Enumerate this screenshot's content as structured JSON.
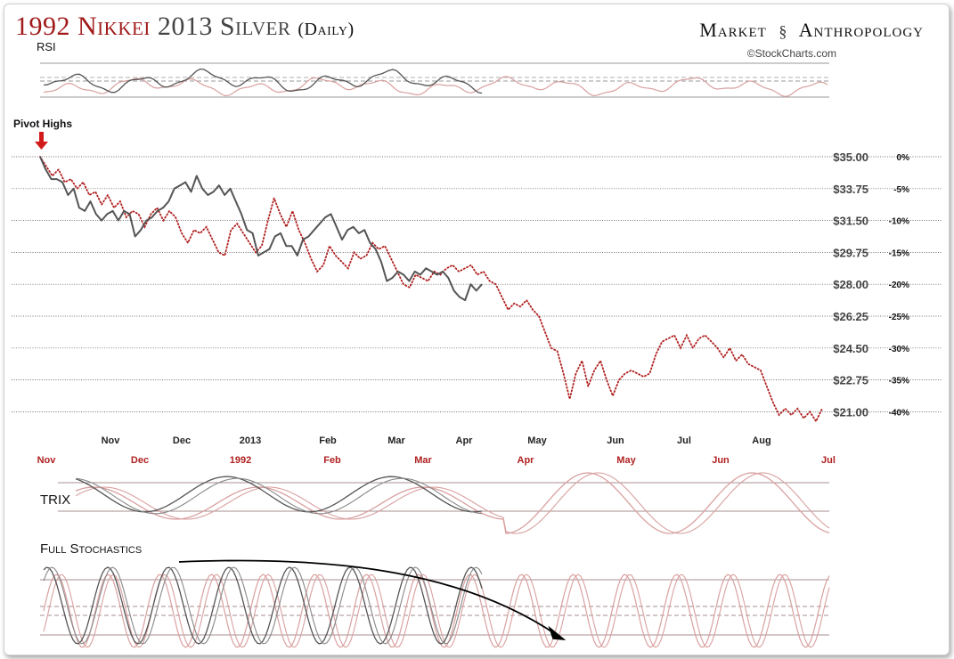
{
  "header": {
    "title_red": "1992 Nikkei",
    "title_gray": "2013 Silver",
    "title_paren": "(Daily)",
    "brand_left": "Market",
    "brand_right": "Anthropology",
    "brand_icon": "dna-helix-icon",
    "credit": "©StockCharts.com"
  },
  "labels": {
    "rsi": "RSI",
    "pivot": "Pivot Highs",
    "trix": "TRIX",
    "stoch": "Full Stochastics"
  },
  "colors": {
    "nikkei": "#b02020",
    "silver": "#555555",
    "nikkei_light": "#d9a0a0",
    "grid": "#9a9a9a",
    "arrow": "#d11a1a"
  },
  "chart_data": {
    "type": "line",
    "y_axis": {
      "price_ticks": [
        "$35.00",
        "$33.75",
        "$31.50",
        "$29.75",
        "$28.00",
        "$26.25",
        "$24.50",
        "$22.75",
        "$21.00"
      ],
      "pct_ticks": [
        "0%",
        "-5%",
        "-10%",
        "-15%",
        "-20%",
        "-25%",
        "-30%",
        "-35%",
        "-40%"
      ],
      "range_pct": [
        -40,
        0
      ]
    },
    "x_axis_silver": [
      "Nov",
      "Dec",
      "2013",
      "Feb",
      "Mar",
      "Apr",
      "May",
      "Jun",
      "Jul",
      "Aug"
    ],
    "x_axis_nikkei": [
      "Nov",
      "Dec",
      "1992",
      "Feb",
      "Mar",
      "Apr",
      "May",
      "Jun",
      "Jul"
    ],
    "grid": true,
    "series": [
      {
        "name": "1992 Nikkei",
        "style": "dotted",
        "pct": [
          0,
          -1.5,
          -3,
          -2,
          -4,
          -3.5,
          -5,
          -4,
          -6,
          -5.5,
          -7.5,
          -6,
          -8,
          -7,
          -9.5,
          -8.5,
          -9,
          -11,
          -9,
          -8,
          -10,
          -8.5,
          -9.5,
          -12,
          -13.5,
          -11.5,
          -12,
          -11,
          -13,
          -15,
          -15.5,
          -11.5,
          -10.5,
          -12,
          -13.5,
          -15,
          -14,
          -10,
          -6.5,
          -9,
          -11,
          -8.5,
          -11.5,
          -13.5,
          -16,
          -18,
          -17,
          -14,
          -15.5,
          -16.5,
          -17.5,
          -15,
          -16,
          -15.5,
          -13.5,
          -14.5,
          -14,
          -16,
          -18,
          -20,
          -20.5,
          -18.5,
          -19,
          -19.5,
          -18,
          -18.5,
          -17.5,
          -17,
          -18,
          -17.5,
          -17,
          -18.5,
          -18,
          -19.5,
          -20,
          -22,
          -24,
          -23,
          -23.5,
          -22.5,
          -24,
          -25,
          -27.5,
          -30,
          -30.5,
          -34,
          -38,
          -34,
          -32,
          -36,
          -33.5,
          -32,
          -35,
          -37.5,
          -35,
          -34,
          -33.5,
          -34,
          -34.5,
          -34,
          -31,
          -29,
          -28.5,
          -28,
          -30,
          -28,
          -30,
          -28.5,
          -28,
          -29,
          -30,
          -31.5,
          -30,
          -32,
          -31,
          -32.5,
          -33,
          -33.5,
          -36,
          -38.5,
          -40.5,
          -39.5,
          -40.5,
          -39.5,
          -41,
          -40,
          -41.5,
          -39.5
        ]
      },
      {
        "name": "2013 Silver",
        "style": "solid",
        "pct": [
          0,
          -2,
          -3.5,
          -3.5,
          -4,
          -6,
          -5,
          -8,
          -8.5,
          -7,
          -9,
          -10,
          -9,
          -8.5,
          -10,
          -8.5,
          -9,
          -12.5,
          -11.5,
          -10,
          -9.5,
          -8.5,
          -8,
          -7,
          -5,
          -4.5,
          -4,
          -5.5,
          -3,
          -5,
          -6,
          -5.5,
          -4.5,
          -6,
          -5,
          -7,
          -9,
          -11.5,
          -12,
          -15.5,
          -15,
          -14.5,
          -12.5,
          -12,
          -14,
          -14,
          -15.5,
          -13,
          -12.5,
          -11.5,
          -10.5,
          -9.5,
          -9,
          -11,
          -13,
          -11.5,
          -11,
          -12,
          -11.5,
          -13.5,
          -14.5,
          -16.5,
          -19.5,
          -19,
          -18,
          -18.5,
          -19.5,
          -18,
          -18.5,
          -17.5,
          -18,
          -18.5,
          -18,
          -19,
          -21,
          -22,
          -22.5,
          -20,
          -21,
          -20
        ]
      }
    ]
  }
}
